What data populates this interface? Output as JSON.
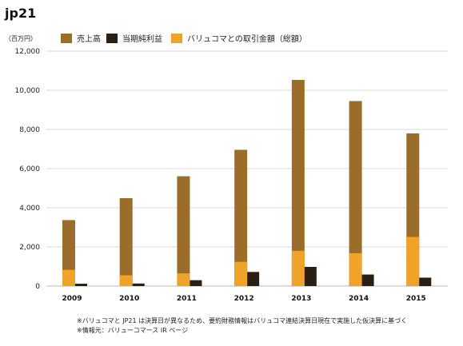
{
  "chart_data": {
    "type": "bar",
    "title": "jp21",
    "unit_label": "（百万円）",
    "categories": [
      "2009",
      "2010",
      "2011",
      "2012",
      "2013",
      "2014",
      "2015"
    ],
    "series": [
      {
        "name": "売上高",
        "values": [
          3370,
          4490,
          5610,
          6960,
          10530,
          9450,
          7800
        ],
        "color": "#9a6e2a"
      },
      {
        "name": "当期純利益",
        "values": [
          120,
          130,
          300,
          720,
          980,
          590,
          430
        ],
        "color": "#2a1f12"
      },
      {
        "name": "バリュコマとの取引金額（総額）",
        "values": [
          830,
          550,
          650,
          1240,
          1800,
          1680,
          2510
        ],
        "color": "#f0a329"
      }
    ],
    "ylim": [
      0,
      12000
    ],
    "yticks": [
      "0",
      "2,000",
      "4,000",
      "6,000",
      "8,000",
      "10,000",
      "12,000"
    ],
    "grid": true,
    "legend_position": "top"
  },
  "notes": [
    "※バリュコマと JP21 は決算日が異なるため、要約財務情報はバリュコマ連結決算日現在で実施した仮決算に基づく",
    "※情報元：バリューコマース IR ページ"
  ]
}
